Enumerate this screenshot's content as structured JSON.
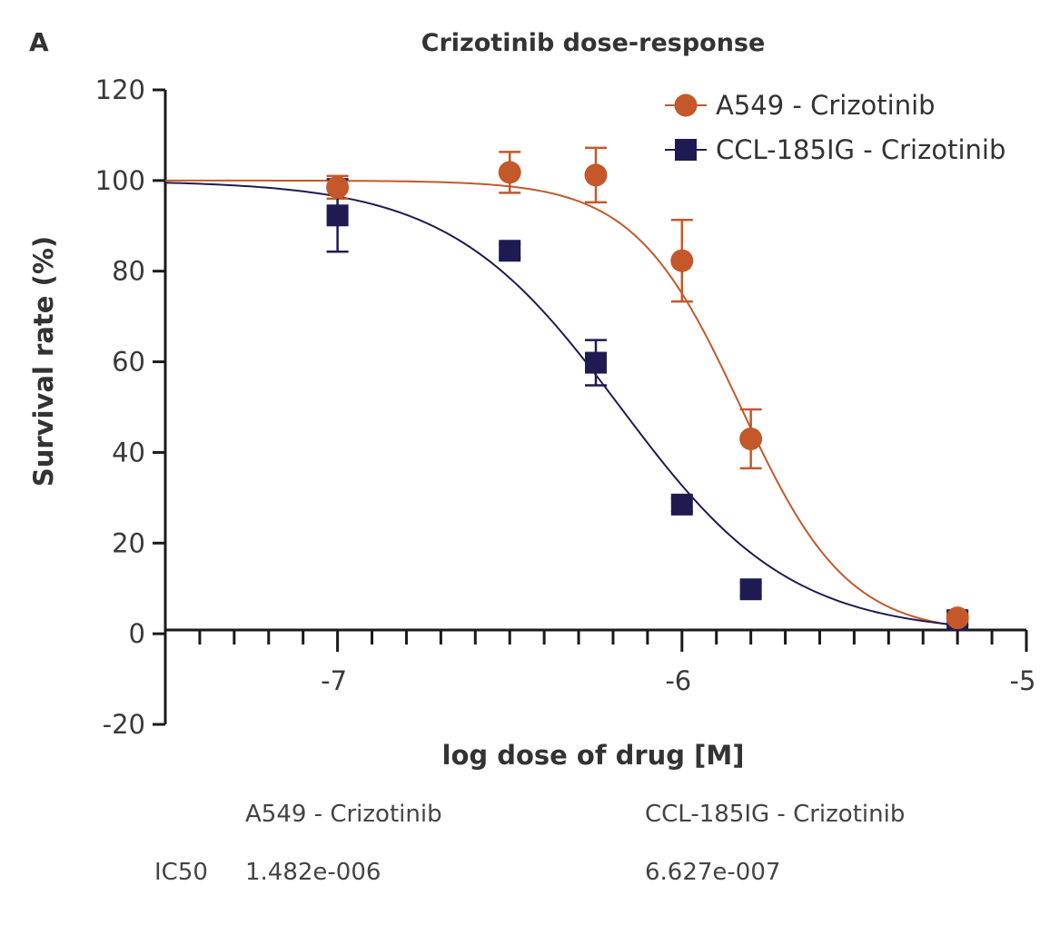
{
  "panel_label": "A",
  "chart_data": {
    "type": "scatter",
    "title": "Crizotinib dose-response",
    "xlabel": "log dose of drug [M]",
    "ylabel": "Survival rate (%)",
    "xlim": [
      -7.5,
      -5
    ],
    "ylim": [
      -20,
      120
    ],
    "x_ticks": [
      -7,
      -6,
      -5
    ],
    "x_tick_labels": [
      "-7",
      "-6",
      "-5"
    ],
    "y_ticks": [
      -20,
      0,
      20,
      40,
      60,
      80,
      100,
      120
    ],
    "y_tick_labels": [
      "-20",
      "0",
      "20",
      "40",
      "60",
      "80",
      "100",
      "120"
    ],
    "x_minor_step": 0.1,
    "grid": false,
    "legend_position": "top-right",
    "series": [
      {
        "name": "A549 - Crizotinib",
        "color": "#c4582a",
        "marker": "circle",
        "x": [
          -7.0,
          -6.5,
          -6.25,
          -6.0,
          -5.8,
          -5.2
        ],
        "y": [
          98.5,
          101.8,
          101.2,
          82.3,
          43.0,
          3.5
        ],
        "err": [
          2.5,
          4.5,
          6.0,
          9.0,
          6.5,
          1.5
        ],
        "fit": {
          "top": 100,
          "bottom": 0,
          "log_ic50": -5.829,
          "hill": 2.8
        }
      },
      {
        "name": "CCL-185IG - Crizotinib",
        "color": "#1f1b52",
        "marker": "square",
        "x": [
          -7.0,
          -6.5,
          -6.25,
          -6.0,
          -5.8,
          -5.2
        ],
        "y": [
          92.3,
          84.5,
          59.8,
          28.5,
          9.8,
          3.0
        ],
        "err": [
          8.0,
          1.5,
          5.0,
          1.5,
          1.5,
          1.0
        ],
        "fit": {
          "top": 100,
          "bottom": 0,
          "log_ic50": -6.179,
          "hill": 1.75
        }
      }
    ]
  },
  "ic50_table": {
    "columns": [
      "A549 - Crizotinib",
      "CCL-185IG - Crizotinib"
    ],
    "row_label": "IC50",
    "values": [
      "1.482e-006",
      "6.627e-007"
    ]
  }
}
